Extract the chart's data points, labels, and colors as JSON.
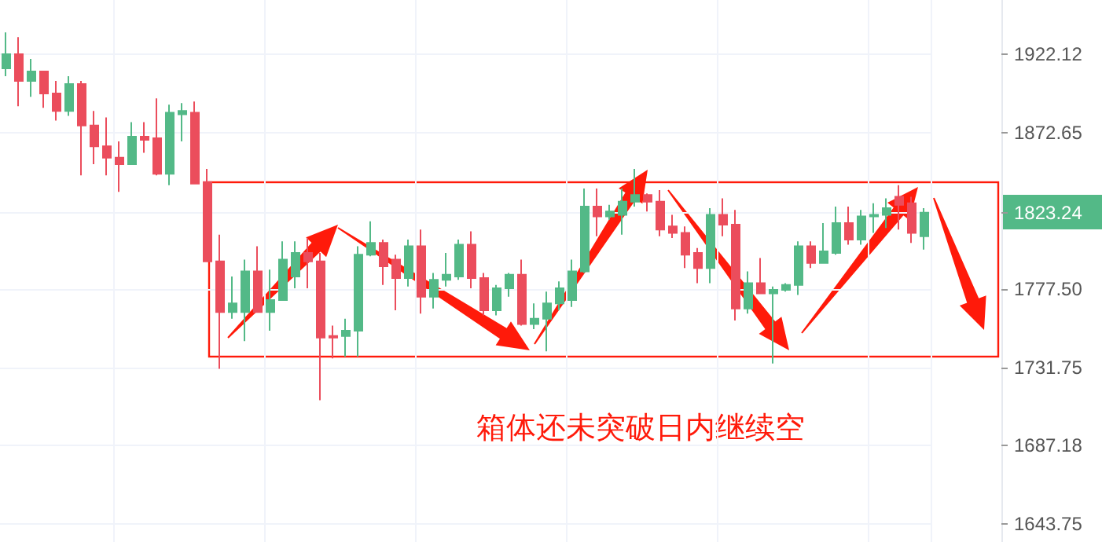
{
  "chart_data": {
    "type": "candlestick",
    "categories": [
      null,
      null,
      null,
      null,
      null,
      null,
      null,
      null,
      null,
      null,
      null,
      null,
      null,
      null,
      null,
      null,
      null,
      null,
      null,
      null,
      null,
      null,
      null,
      null,
      null,
      null,
      null,
      null,
      null,
      null,
      null,
      null,
      null,
      null,
      null,
      null,
      null,
      null,
      null,
      null,
      null,
      null,
      null,
      null,
      null,
      null,
      null,
      null,
      null,
      null,
      null,
      null,
      null,
      null,
      null,
      null,
      null,
      null,
      null,
      null,
      null,
      null,
      null,
      null,
      null,
      null,
      null,
      null,
      null,
      null,
      null,
      null,
      null,
      null
    ],
    "ohlc": [
      [
        1913,
        1936,
        1908,
        1922
      ],
      [
        1922,
        1933,
        1889,
        1905
      ],
      [
        1905,
        1919,
        1895,
        1911
      ],
      [
        1911,
        1911,
        1888,
        1897
      ],
      [
        1897,
        1905,
        1880,
        1886
      ],
      [
        1886,
        1908,
        1883,
        1903
      ],
      [
        1903,
        1905,
        1846,
        1877
      ],
      [
        1877,
        1886,
        1853,
        1864
      ],
      [
        1864,
        1882,
        1846,
        1857
      ],
      [
        1857,
        1867,
        1836,
        1853
      ],
      [
        1853,
        1879,
        1853,
        1870
      ],
      [
        1870,
        1879,
        1860,
        1868
      ],
      [
        1869,
        1894,
        1846,
        1847
      ],
      [
        1847,
        1890,
        1840,
        1885
      ],
      [
        1884,
        1891,
        1867,
        1886
      ],
      [
        1885,
        1892,
        1841,
        1841
      ],
      [
        1842,
        1850,
        1794,
        1794
      ],
      [
        1794,
        1810,
        1731,
        1764
      ],
      [
        1764,
        1785,
        1760,
        1769
      ],
      [
        1764,
        1795,
        1747,
        1788
      ],
      [
        1788,
        1803,
        1764,
        1764
      ],
      [
        1764,
        1789,
        1753,
        1771
      ],
      [
        1771,
        1806,
        1771,
        1795
      ],
      [
        1785,
        1806,
        1778,
        1799
      ],
      [
        1799,
        1808,
        1778,
        1794
      ],
      [
        1794,
        1799,
        1713,
        1749
      ],
      [
        1750,
        1756,
        1737,
        1749
      ],
      [
        1750,
        1760,
        1738,
        1753
      ],
      [
        1753,
        1803,
        1738,
        1798
      ],
      [
        1798,
        1818,
        1797,
        1805
      ],
      [
        1805,
        1807,
        1780,
        1791
      ],
      [
        1795,
        1798,
        1765,
        1784
      ],
      [
        1784,
        1807,
        1779,
        1803
      ],
      [
        1803,
        1813,
        1763,
        1773
      ],
      [
        1773,
        1787,
        1766,
        1783
      ],
      [
        1783,
        1799,
        1779,
        1786
      ],
      [
        1785,
        1807,
        1783,
        1804
      ],
      [
        1804,
        1812,
        1778,
        1784
      ],
      [
        1784,
        1787,
        1762,
        1765
      ],
      [
        1765,
        1780,
        1762,
        1778
      ],
      [
        1778,
        1787,
        1773,
        1786
      ],
      [
        1786,
        1795,
        1756,
        1757
      ],
      [
        1757,
        1769,
        1754,
        1760
      ],
      [
        1760,
        1776,
        1741,
        1769
      ],
      [
        1769,
        1782,
        1765,
        1778
      ],
      [
        1771,
        1795,
        1767,
        1788
      ],
      [
        1788,
        1838,
        1787,
        1827
      ],
      [
        1827,
        1838,
        1809,
        1821
      ],
      [
        1821,
        1828,
        1819,
        1824
      ],
      [
        1822,
        1838,
        1810,
        1830
      ],
      [
        1830,
        1850,
        1827,
        1834
      ],
      [
        1834,
        1835,
        1824,
        1830
      ],
      [
        1830,
        1837,
        1809,
        1813
      ],
      [
        1815,
        1822,
        1808,
        1811
      ],
      [
        1811,
        1815,
        1790,
        1798
      ],
      [
        1799,
        1802,
        1781,
        1790
      ],
      [
        1790,
        1826,
        1781,
        1822
      ],
      [
        1822,
        1832,
        1809,
        1816
      ],
      [
        1816,
        1825,
        1759,
        1766
      ],
      [
        1766,
        1788,
        1763,
        1781
      ],
      [
        1781,
        1796,
        1775,
        1775
      ],
      [
        1775,
        1779,
        1734,
        1777
      ],
      [
        1777,
        1781,
        1776,
        1780
      ],
      [
        1780,
        1806,
        1774,
        1803
      ],
      [
        1803,
        1806,
        1790,
        1793
      ],
      [
        1793,
        1817,
        1793,
        1800
      ],
      [
        1799,
        1827,
        1798,
        1817
      ],
      [
        1817,
        1827,
        1804,
        1807
      ],
      [
        1807,
        1825,
        1804,
        1821
      ],
      [
        1821,
        1829,
        1811,
        1822
      ],
      [
        1822,
        1832,
        1814,
        1826
      ],
      [
        1833,
        1840,
        1813,
        1828
      ],
      [
        1829,
        1833,
        1805,
        1811
      ],
      [
        1809,
        1826,
        1801,
        1823.24
      ]
    ],
    "colors": [
      "#53b987",
      "#eb4d5c",
      "#53b987",
      "#eb4d5c",
      "#eb4d5c",
      "#53b987",
      "#eb4d5c",
      "#eb4d5c",
      "#eb4d5c",
      "#eb4d5c",
      "#53b987",
      "#eb4d5c",
      "#eb4d5c",
      "#53b987",
      "#53b987",
      "#eb4d5c",
      "#eb4d5c",
      "#eb4d5c",
      "#53b987",
      "#53b987",
      "#eb4d5c",
      "#53b987",
      "#53b987",
      "#53b987",
      "#eb4d5c",
      "#eb4d5c",
      "#eb4d5c",
      "#53b987",
      "#53b987",
      "#53b987",
      "#eb4d5c",
      "#eb4d5c",
      "#53b987",
      "#eb4d5c",
      "#53b987",
      "#53b987",
      "#53b987",
      "#eb4d5c",
      "#eb4d5c",
      "#53b987",
      "#53b987",
      "#eb4d5c",
      "#53b987",
      "#53b987",
      "#53b987",
      "#53b987",
      "#53b987",
      "#eb4d5c",
      "#53b987",
      "#53b987",
      "#53b987",
      "#eb4d5c",
      "#eb4d5c",
      "#eb4d5c",
      "#eb4d5c",
      "#eb4d5c",
      "#53b987",
      "#eb4d5c",
      "#eb4d5c",
      "#53b987",
      "#eb4d5c",
      "#53b987",
      "#53b987",
      "#53b987",
      "#eb4d5c",
      "#53b987",
      "#53b987",
      "#eb4d5c",
      "#53b987",
      "#53b987",
      "#53b987",
      "#eb4d5c",
      "#eb4d5c",
      "#53b987"
    ],
    "ylim": [
      1634,
      1957
    ],
    "yticks": [
      1643.75,
      1687.18,
      1731.75,
      {
        "value": 1777.5,
        "label": "1777.50"
      },
      1823.24,
      1872.65,
      1922.12
    ],
    "log": true,
    "grid": true,
    "annotations": [
      "箱体还未突破日内继续空"
    ]
  }
}
